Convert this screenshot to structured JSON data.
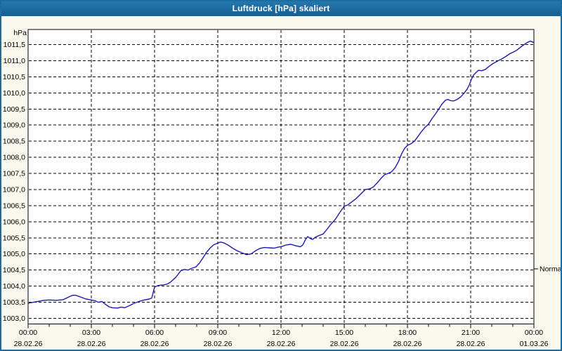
{
  "window": {
    "title": "Luftdruck [hPa] skaliert"
  },
  "colors": {
    "titlebar": "#1d6ba0",
    "window_border": "#1d6da4",
    "background": "#fbf8ee",
    "plot_background": "#ffffff",
    "grid": "#000000",
    "axis_text": "#000000",
    "series_line": "#1a1aae"
  },
  "chart_data": {
    "type": "line",
    "title": "Luftdruck [hPa] skaliert",
    "ylabel": "hPa",
    "xlabel": "",
    "grid": "dashed",
    "legend_position": "none",
    "y_axis": {
      "min": 1003.0,
      "max": 1011.5,
      "step": 0.5,
      "unit_label": "hPa",
      "ticks": [
        {
          "value": 1011.5,
          "label": "1011,5"
        },
        {
          "value": 1011.0,
          "label": "1011,0"
        },
        {
          "value": 1010.5,
          "label": "1010,5"
        },
        {
          "value": 1010.0,
          "label": "1010,0"
        },
        {
          "value": 1009.5,
          "label": "1009,5"
        },
        {
          "value": 1009.0,
          "label": "1009,0"
        },
        {
          "value": 1008.5,
          "label": "1008,5"
        },
        {
          "value": 1008.0,
          "label": "1008,0"
        },
        {
          "value": 1007.5,
          "label": "1007,5"
        },
        {
          "value": 1007.0,
          "label": "1007,0"
        },
        {
          "value": 1006.5,
          "label": "1006,5"
        },
        {
          "value": 1006.0,
          "label": "1006,0"
        },
        {
          "value": 1005.5,
          "label": "1005,5"
        },
        {
          "value": 1005.0,
          "label": "1005,0"
        },
        {
          "value": 1004.5,
          "label": "1004,5"
        },
        {
          "value": 1004.0,
          "label": "1004,0"
        },
        {
          "value": 1003.5,
          "label": "1003,5"
        },
        {
          "value": 1003.0,
          "label": "1003,0"
        }
      ]
    },
    "x_axis": {
      "unit": "minutes",
      "min": 0,
      "max": 1440,
      "minor_tick_every_minutes": 60,
      "major_ticks": [
        {
          "minutes": 0,
          "time": "00:00",
          "date": "28.02.26"
        },
        {
          "minutes": 180,
          "time": "03:00",
          "date": "28.02.26"
        },
        {
          "minutes": 360,
          "time": "06:00",
          "date": "28.02.26"
        },
        {
          "minutes": 540,
          "time": "09:00",
          "date": "28.02.26"
        },
        {
          "minutes": 720,
          "time": "12:00",
          "date": "28.02.26"
        },
        {
          "minutes": 900,
          "time": "15:00",
          "date": "28.02.26"
        },
        {
          "minutes": 1080,
          "time": "18:00",
          "date": "28.02.26"
        },
        {
          "minutes": 1260,
          "time": "21:00",
          "date": "28.02.26"
        },
        {
          "minutes": 1440,
          "time": "00:00",
          "date": "01.03.26"
        }
      ]
    },
    "annotations": [
      {
        "label": "Normal",
        "value": 1004.54,
        "side": "right"
      }
    ],
    "series": [
      {
        "name": "Luftdruck",
        "color": "#1a1aae",
        "points": [
          [
            0,
            1003.47
          ],
          [
            15,
            1003.5
          ],
          [
            30,
            1003.53
          ],
          [
            45,
            1003.56
          ],
          [
            60,
            1003.57
          ],
          [
            80,
            1003.56
          ],
          [
            100,
            1003.58
          ],
          [
            115,
            1003.66
          ],
          [
            125,
            1003.71
          ],
          [
            135,
            1003.72
          ],
          [
            145,
            1003.68
          ],
          [
            155,
            1003.64
          ],
          [
            165,
            1003.6
          ],
          [
            180,
            1003.57
          ],
          [
            190,
            1003.55
          ],
          [
            200,
            1003.5
          ],
          [
            210,
            1003.52
          ],
          [
            220,
            1003.44
          ],
          [
            230,
            1003.36
          ],
          [
            240,
            1003.33
          ],
          [
            255,
            1003.32
          ],
          [
            265,
            1003.35
          ],
          [
            275,
            1003.33
          ],
          [
            290,
            1003.4
          ],
          [
            300,
            1003.46
          ],
          [
            315,
            1003.52
          ],
          [
            330,
            1003.57
          ],
          [
            345,
            1003.6
          ],
          [
            352,
            1003.63
          ],
          [
            360,
            1003.97
          ],
          [
            370,
            1004.02
          ],
          [
            385,
            1004.04
          ],
          [
            395,
            1004.06
          ],
          [
            405,
            1004.12
          ],
          [
            420,
            1004.27
          ],
          [
            428,
            1004.38
          ],
          [
            435,
            1004.48
          ],
          [
            445,
            1004.52
          ],
          [
            455,
            1004.5
          ],
          [
            465,
            1004.55
          ],
          [
            478,
            1004.6
          ],
          [
            488,
            1004.72
          ],
          [
            498,
            1004.88
          ],
          [
            508,
            1005.05
          ],
          [
            518,
            1005.18
          ],
          [
            528,
            1005.28
          ],
          [
            538,
            1005.33
          ],
          [
            548,
            1005.37
          ],
          [
            558,
            1005.34
          ],
          [
            570,
            1005.27
          ],
          [
            582,
            1005.18
          ],
          [
            595,
            1005.1
          ],
          [
            610,
            1005.03
          ],
          [
            622,
            1004.98
          ],
          [
            635,
            1005.0
          ],
          [
            648,
            1005.1
          ],
          [
            660,
            1005.17
          ],
          [
            672,
            1005.2
          ],
          [
            685,
            1005.19
          ],
          [
            700,
            1005.18
          ],
          [
            712,
            1005.21
          ],
          [
            722,
            1005.23
          ],
          [
            735,
            1005.28
          ],
          [
            748,
            1005.3
          ],
          [
            760,
            1005.26
          ],
          [
            775,
            1005.22
          ],
          [
            782,
            1005.28
          ],
          [
            790,
            1005.45
          ],
          [
            796,
            1005.54
          ],
          [
            803,
            1005.48
          ],
          [
            810,
            1005.45
          ],
          [
            818,
            1005.52
          ],
          [
            830,
            1005.58
          ],
          [
            840,
            1005.62
          ],
          [
            852,
            1005.78
          ],
          [
            862,
            1005.92
          ],
          [
            875,
            1006.08
          ],
          [
            888,
            1006.3
          ],
          [
            900,
            1006.48
          ],
          [
            910,
            1006.52
          ],
          [
            922,
            1006.62
          ],
          [
            935,
            1006.73
          ],
          [
            948,
            1006.87
          ],
          [
            960,
            1007.0
          ],
          [
            972,
            1007.02
          ],
          [
            983,
            1007.08
          ],
          [
            995,
            1007.22
          ],
          [
            1005,
            1007.35
          ],
          [
            1015,
            1007.46
          ],
          [
            1025,
            1007.5
          ],
          [
            1035,
            1007.55
          ],
          [
            1045,
            1007.68
          ],
          [
            1055,
            1007.88
          ],
          [
            1063,
            1008.1
          ],
          [
            1072,
            1008.28
          ],
          [
            1080,
            1008.37
          ],
          [
            1090,
            1008.42
          ],
          [
            1100,
            1008.5
          ],
          [
            1110,
            1008.65
          ],
          [
            1120,
            1008.8
          ],
          [
            1130,
            1008.93
          ],
          [
            1140,
            1009.03
          ],
          [
            1150,
            1009.2
          ],
          [
            1160,
            1009.35
          ],
          [
            1168,
            1009.48
          ],
          [
            1178,
            1009.65
          ],
          [
            1188,
            1009.77
          ],
          [
            1195,
            1009.8
          ],
          [
            1202,
            1009.76
          ],
          [
            1212,
            1009.75
          ],
          [
            1222,
            1009.8
          ],
          [
            1232,
            1009.88
          ],
          [
            1242,
            1010.0
          ],
          [
            1250,
            1010.12
          ],
          [
            1256,
            1010.25
          ],
          [
            1262,
            1010.42
          ],
          [
            1268,
            1010.55
          ],
          [
            1275,
            1010.63
          ],
          [
            1282,
            1010.7
          ],
          [
            1292,
            1010.69
          ],
          [
            1302,
            1010.73
          ],
          [
            1312,
            1010.82
          ],
          [
            1322,
            1010.9
          ],
          [
            1335,
            1010.98
          ],
          [
            1348,
            1011.05
          ],
          [
            1360,
            1011.13
          ],
          [
            1372,
            1011.22
          ],
          [
            1382,
            1011.27
          ],
          [
            1392,
            1011.33
          ],
          [
            1402,
            1011.42
          ],
          [
            1412,
            1011.5
          ],
          [
            1422,
            1011.57
          ],
          [
            1430,
            1011.61
          ],
          [
            1436,
            1011.58
          ],
          [
            1440,
            1011.56
          ]
        ]
      }
    ]
  }
}
